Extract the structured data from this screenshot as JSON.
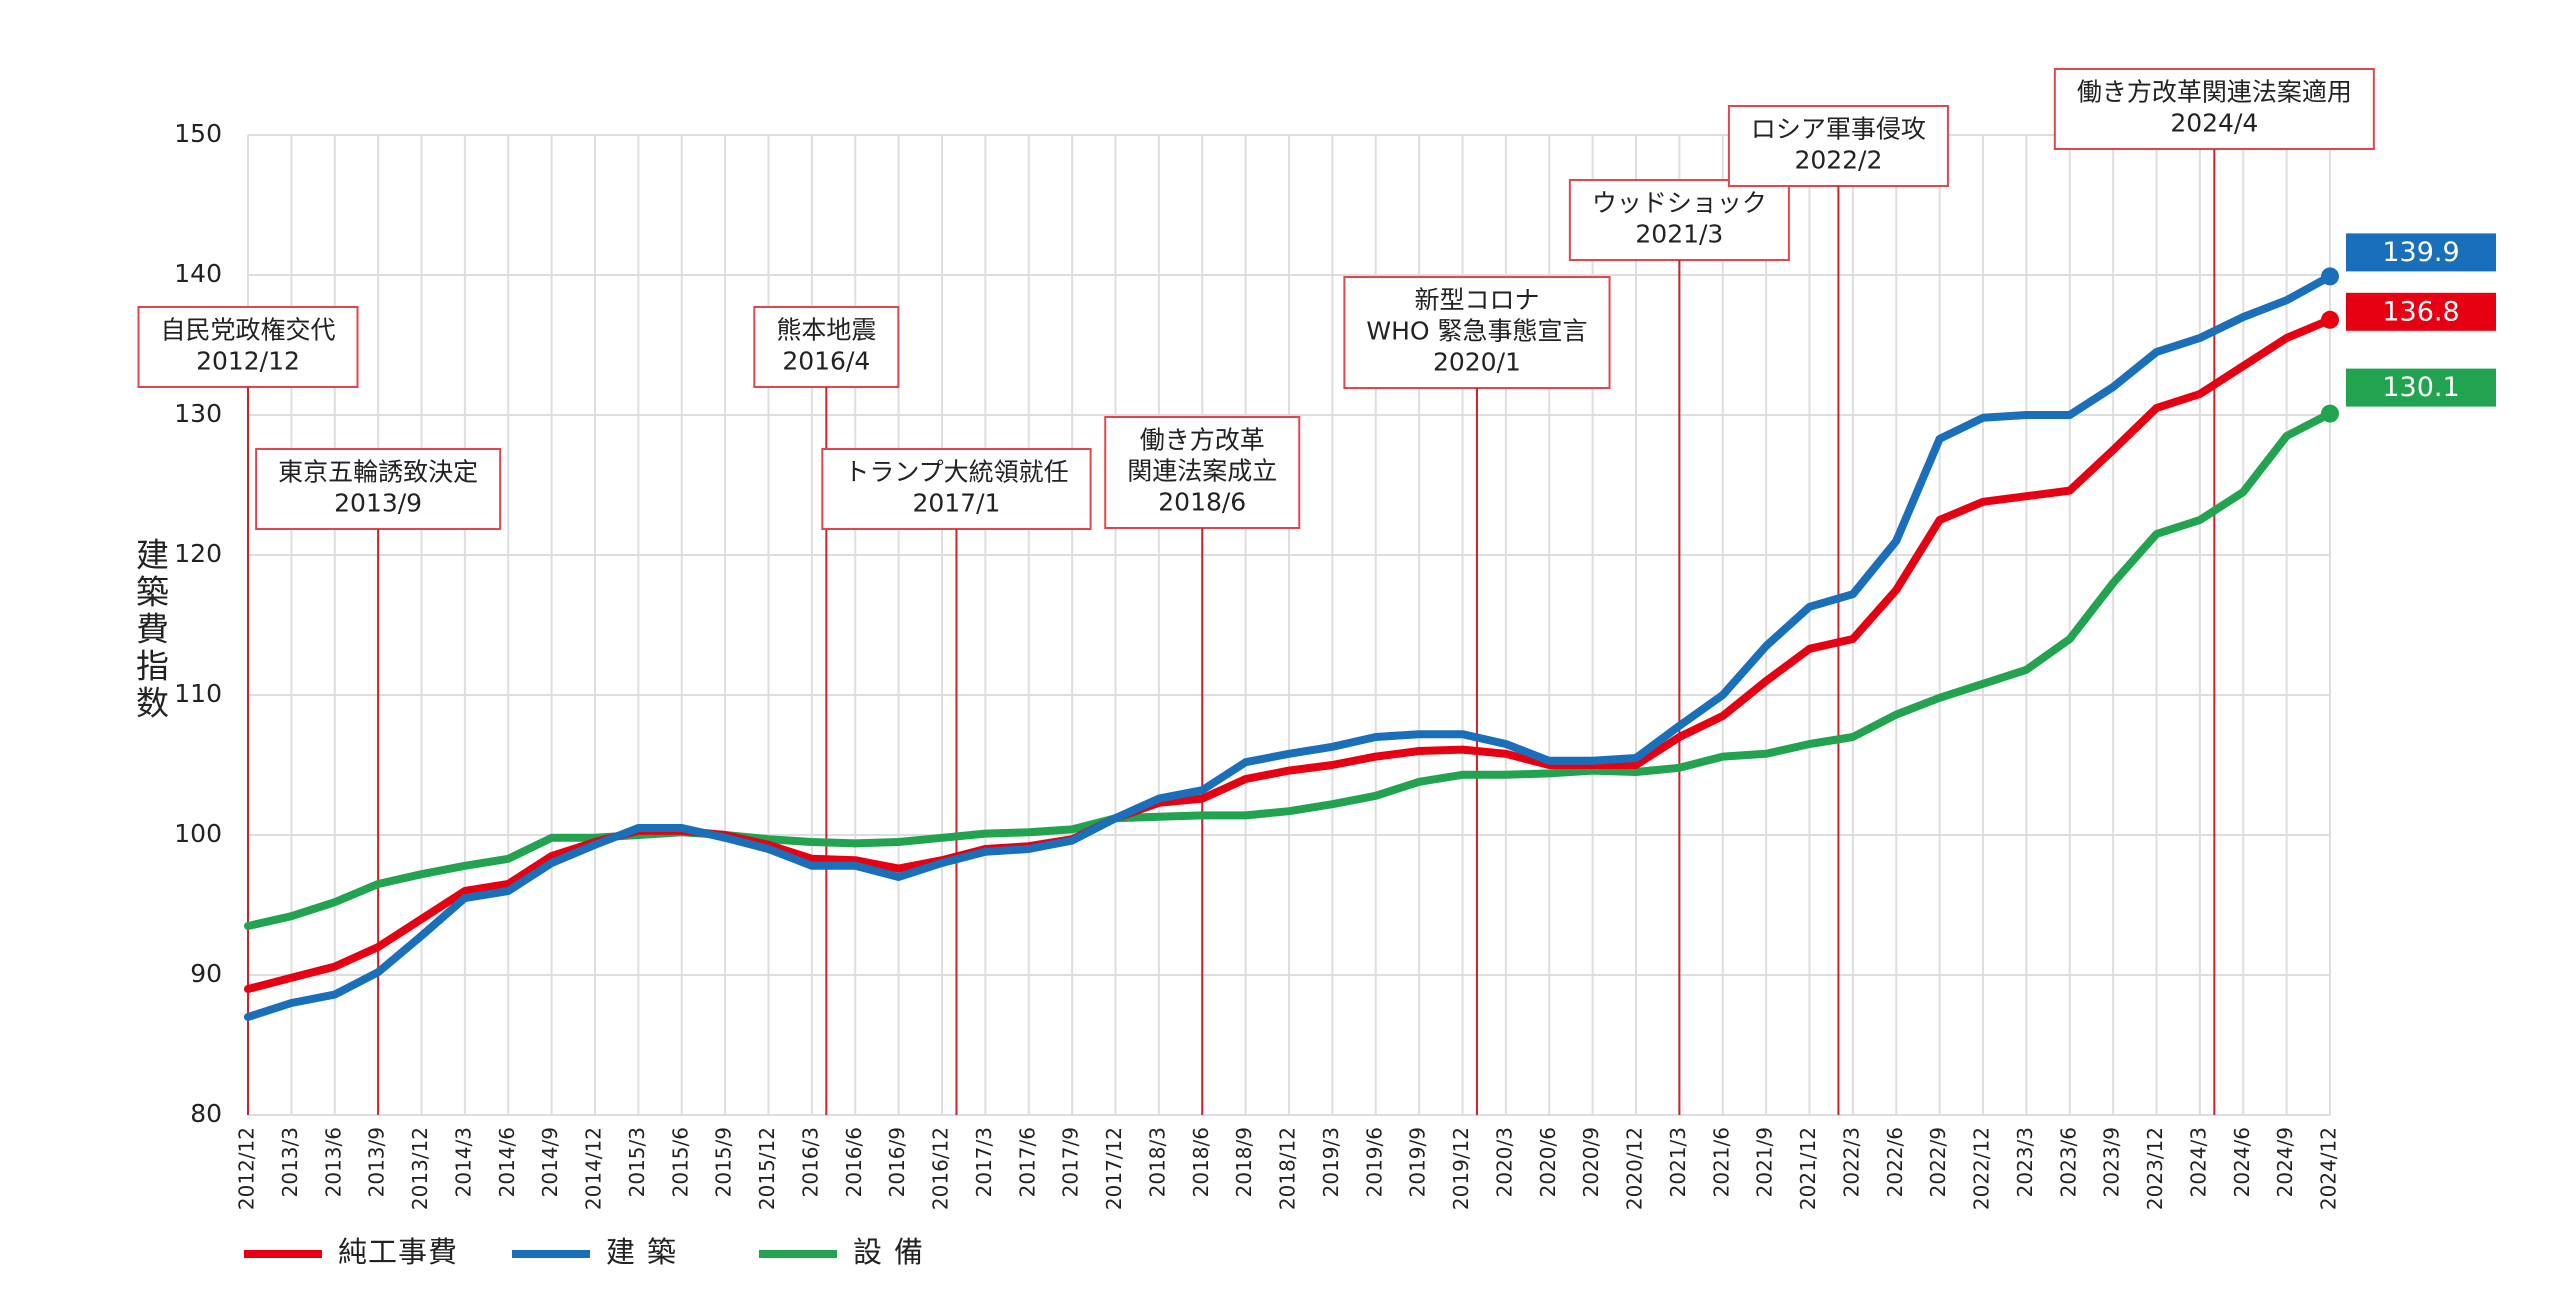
{
  "chart_data": {
    "type": "line",
    "y_label": "建築費指数",
    "categories": [
      "2012/12",
      "2013/3",
      "2013/6",
      "2013/9",
      "2013/12",
      "2014/3",
      "2014/6",
      "2014/9",
      "2014/12",
      "2015/3",
      "2015/6",
      "2015/9",
      "2015/12",
      "2016/3",
      "2016/6",
      "2016/9",
      "2016/12",
      "2017/3",
      "2017/6",
      "2017/9",
      "2017/12",
      "2018/3",
      "2018/6",
      "2018/9",
      "2018/12",
      "2019/3",
      "2019/6",
      "2019/9",
      "2019/12",
      "2020/3",
      "2020/6",
      "2020/9",
      "2020/12",
      "2021/3",
      "2021/6",
      "2021/9",
      "2021/12",
      "2022/3",
      "2022/6",
      "2022/9",
      "2022/12",
      "2023/3",
      "2023/6",
      "2023/9",
      "2023/12",
      "2024/3",
      "2024/6",
      "2024/9",
      "2024/12"
    ],
    "series": [
      {
        "name": "純工事費",
        "color": "#e60012",
        "values": [
          89,
          89.8,
          90.6,
          92,
          94,
          96,
          96.5,
          98.5,
          99.5,
          100.3,
          100.3,
          100,
          99.3,
          98.3,
          98.2,
          97.6,
          98.2,
          99,
          99.2,
          99.7,
          101.2,
          102.3,
          102.6,
          104,
          104.6,
          105,
          105.6,
          106,
          106.1,
          105.8,
          105,
          105,
          105,
          107,
          108.5,
          111,
          113.3,
          114,
          117.5,
          122.5,
          123.8,
          124.2,
          124.6,
          127.5,
          130.5,
          131.5,
          133.5,
          135.5,
          136.8
        ]
      },
      {
        "name": "建築",
        "color": "#1a6fba",
        "values": [
          87,
          88,
          88.6,
          90.2,
          92.8,
          95.5,
          96,
          98,
          99.3,
          100.5,
          100.5,
          99.8,
          99,
          97.8,
          97.8,
          97,
          98,
          98.8,
          99,
          99.6,
          101.2,
          102.6,
          103.2,
          105.2,
          105.8,
          106.3,
          107,
          107.2,
          107.2,
          106.5,
          105.3,
          105.3,
          105.5,
          107.8,
          110,
          113.5,
          116.3,
          117.2,
          121,
          128.3,
          129.8,
          130,
          130,
          132,
          134.5,
          135.5,
          137,
          138.2,
          139.9
        ]
      },
      {
        "name": "設備",
        "color": "#22a350",
        "values": [
          93.5,
          94.2,
          95.2,
          96.5,
          97.2,
          97.8,
          98.3,
          99.8,
          99.8,
          100,
          100.2,
          100,
          99.7,
          99.5,
          99.4,
          99.5,
          99.8,
          100.1,
          100.2,
          100.4,
          101.2,
          101.3,
          101.4,
          101.4,
          101.7,
          102.2,
          102.8,
          103.8,
          104.3,
          104.3,
          104.4,
          104.6,
          104.5,
          104.8,
          105.6,
          105.8,
          106.5,
          107,
          108.6,
          109.8,
          110.8,
          111.8,
          114,
          118,
          121.5,
          122.5,
          124.5,
          128.5,
          130.1
        ]
      }
    ],
    "ylim": [
      80,
      150
    ],
    "yticks": [
      80,
      90,
      100,
      110,
      120,
      130,
      140,
      150
    ],
    "grid": true,
    "annotations": [
      {
        "label": [
          "自民党政権交代"
        ],
        "date": "2012/12"
      },
      {
        "label": [
          "東京五輪誘致決定"
        ],
        "date": "2013/9"
      },
      {
        "label": [
          "熊本地震"
        ],
        "date": "2016/4"
      },
      {
        "label": [
          "トランプ大統領就任"
        ],
        "date": "2017/1"
      },
      {
        "label": [
          "働き方改革",
          "関連法案成立"
        ],
        "date": "2018/6"
      },
      {
        "label": [
          "新型コロナ",
          "WHO 緊急事態宣言"
        ],
        "date": "2020/1"
      },
      {
        "label": [
          "ウッドショック"
        ],
        "date": "2021/3"
      },
      {
        "label": [
          "ロシア軍事侵攻"
        ],
        "date": "2022/2"
      },
      {
        "label": [
          "働き方改革関連法案適用"
        ],
        "date": "2024/4"
      }
    ]
  }
}
